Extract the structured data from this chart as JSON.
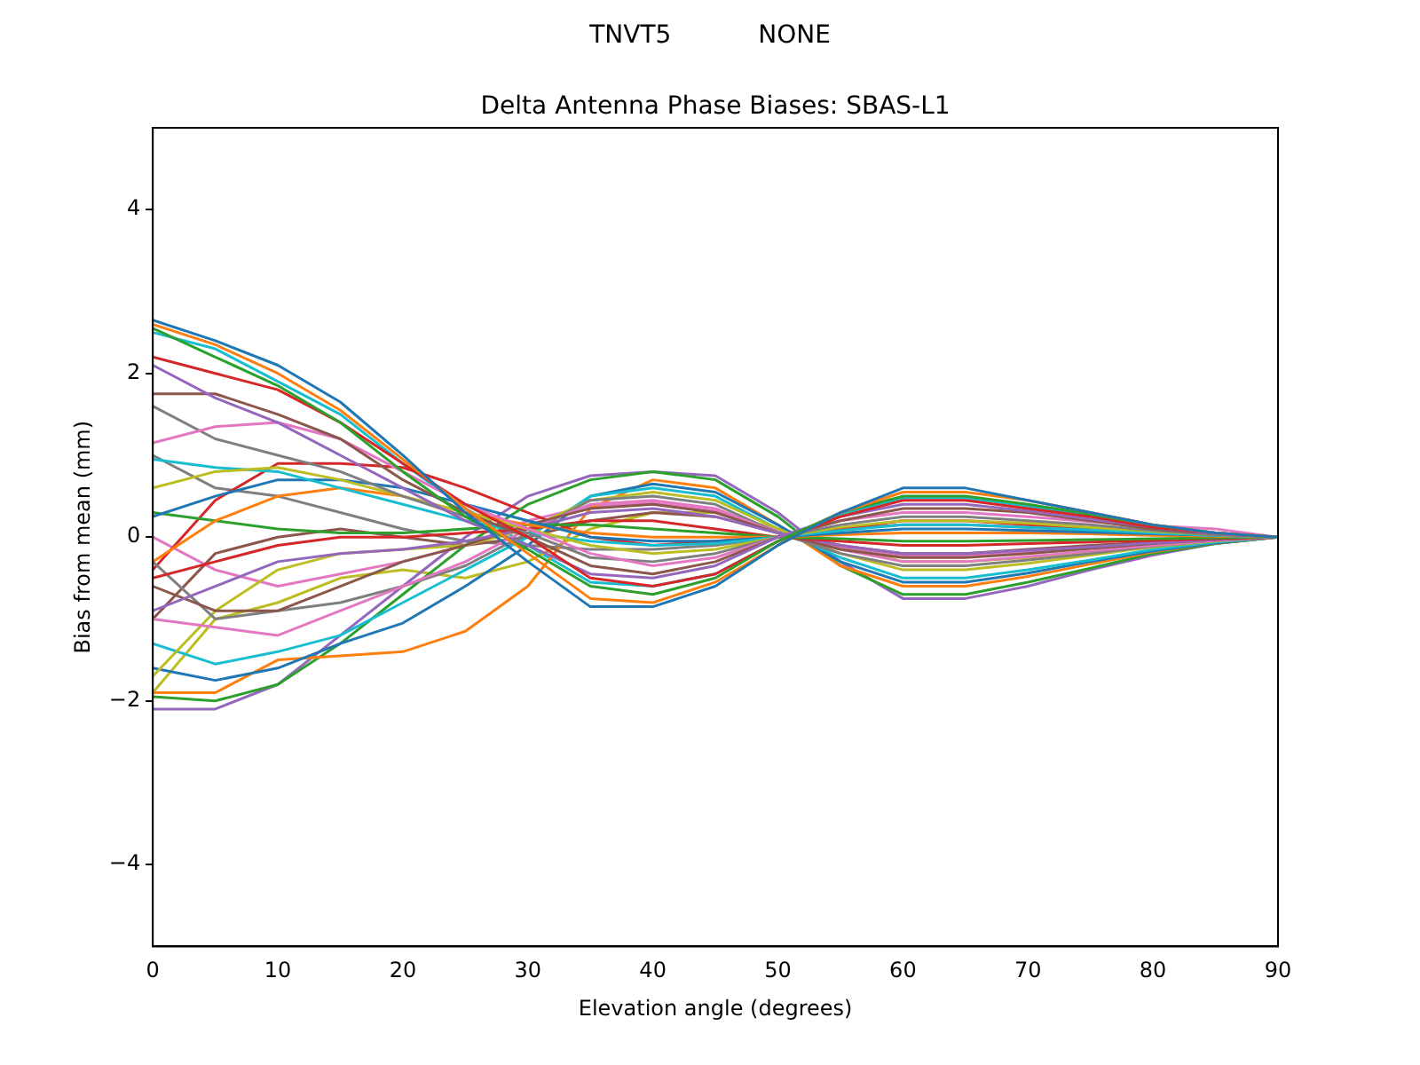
{
  "chart_data": {
    "type": "line",
    "title": "TNVT5           NONE",
    "subtitle": "Delta Antenna Phase Biases: SBAS-L1",
    "xlabel": "Elevation angle (degrees)",
    "ylabel": "Bias from mean (mm)",
    "x": [
      0,
      5,
      10,
      15,
      20,
      25,
      30,
      35,
      40,
      45,
      50,
      55,
      60,
      65,
      70,
      75,
      80,
      85,
      90
    ],
    "xlim": [
      0,
      90
    ],
    "xticks": [
      0,
      10,
      20,
      30,
      40,
      50,
      60,
      70,
      80,
      90
    ],
    "ylim": [
      -5,
      5
    ],
    "yticks": [
      {
        "value": -4,
        "label": "−4"
      },
      {
        "value": -2,
        "label": "−2"
      },
      0,
      2,
      4
    ],
    "grid": false,
    "legend": false,
    "series": [
      {
        "color": "#1f77b4",
        "values": [
          2.65,
          2.4,
          2.1,
          1.65,
          1.0,
          0.3,
          -0.3,
          -0.85,
          -0.85,
          -0.6,
          -0.1,
          0.3,
          0.6,
          0.6,
          0.45,
          0.3,
          0.15,
          0.05,
          0
        ]
      },
      {
        "color": "#ff7f0e",
        "values": [
          2.6,
          2.35,
          2.0,
          1.55,
          0.95,
          0.35,
          -0.2,
          -0.75,
          -0.8,
          -0.55,
          -0.1,
          0.3,
          0.55,
          0.55,
          0.45,
          0.3,
          0.15,
          0.05,
          0
        ]
      },
      {
        "color": "#2ca02c",
        "values": [
          2.55,
          2.2,
          1.85,
          1.4,
          0.8,
          0.25,
          -0.15,
          -0.6,
          -0.7,
          -0.5,
          -0.05,
          0.3,
          0.5,
          0.5,
          0.4,
          0.28,
          0.15,
          0.05,
          0
        ]
      },
      {
        "color": "#d62728",
        "values": [
          2.2,
          2.0,
          1.8,
          1.4,
          0.9,
          0.4,
          0.0,
          -0.5,
          -0.6,
          -0.45,
          -0.05,
          0.25,
          0.45,
          0.45,
          0.35,
          0.25,
          0.12,
          0.05,
          0
        ]
      },
      {
        "color": "#9467bd",
        "values": [
          2.1,
          1.7,
          1.4,
          1.0,
          0.6,
          0.2,
          -0.1,
          -0.45,
          -0.5,
          -0.35,
          0.0,
          0.25,
          0.4,
          0.4,
          0.32,
          0.22,
          0.12,
          0.04,
          0
        ]
      },
      {
        "color": "#8c564b",
        "values": [
          1.75,
          1.75,
          1.5,
          1.2,
          0.7,
          0.3,
          0.0,
          -0.35,
          -0.45,
          -0.3,
          0.0,
          0.2,
          0.35,
          0.35,
          0.3,
          0.2,
          0.1,
          0.04,
          0
        ]
      },
      {
        "color": "#e377c2",
        "values": [
          1.15,
          1.35,
          1.4,
          1.2,
          0.8,
          0.4,
          0.1,
          -0.2,
          -0.35,
          -0.25,
          0.0,
          0.2,
          0.3,
          0.3,
          0.25,
          0.19,
          0.14,
          0.1,
          0
        ]
      },
      {
        "color": "#7f7f7f",
        "values": [
          1.6,
          1.2,
          1.0,
          0.8,
          0.5,
          0.25,
          0.05,
          -0.25,
          -0.3,
          -0.2,
          0.0,
          0.15,
          0.25,
          0.25,
          0.2,
          0.15,
          0.08,
          0.03,
          0
        ]
      },
      {
        "color": "#bcbd22",
        "values": [
          0.6,
          0.8,
          0.85,
          0.7,
          0.5,
          0.3,
          0.1,
          -0.1,
          -0.2,
          -0.15,
          0.0,
          0.12,
          0.2,
          0.2,
          0.17,
          0.12,
          0.07,
          0.03,
          0
        ]
      },
      {
        "color": "#17becf",
        "values": [
          0.95,
          0.85,
          0.8,
          0.6,
          0.4,
          0.2,
          0.05,
          -0.05,
          -0.1,
          -0.08,
          0.0,
          0.08,
          0.15,
          0.15,
          0.12,
          0.09,
          0.05,
          0.02,
          0
        ]
      },
      {
        "color": "#1f77b4",
        "values": [
          0.25,
          0.5,
          0.7,
          0.7,
          0.6,
          0.4,
          0.2,
          0.0,
          -0.05,
          -0.05,
          0.0,
          0.05,
          0.1,
          0.1,
          0.08,
          0.06,
          0.04,
          0.02,
          0
        ]
      },
      {
        "color": "#ff7f0e",
        "values": [
          -0.3,
          0.2,
          0.5,
          0.6,
          0.5,
          0.3,
          0.15,
          0.05,
          0.0,
          0.0,
          0.0,
          0.03,
          0.05,
          0.05,
          0.05,
          0.04,
          0.02,
          0.01,
          0
        ]
      },
      {
        "color": "#2ca02c",
        "values": [
          0.3,
          0.2,
          0.1,
          0.05,
          0.05,
          0.1,
          0.15,
          0.15,
          0.1,
          0.05,
          0.0,
          -0.02,
          -0.05,
          -0.05,
          -0.04,
          -0.03,
          -0.02,
          -0.01,
          0
        ]
      },
      {
        "color": "#d62728",
        "values": [
          -0.5,
          -0.3,
          -0.1,
          0.0,
          0.0,
          0.05,
          0.1,
          0.2,
          0.2,
          0.1,
          0.0,
          -0.05,
          -0.1,
          -0.1,
          -0.08,
          -0.06,
          -0.04,
          -0.02,
          0
        ]
      },
      {
        "color": "#9467bd",
        "values": [
          -0.9,
          -0.6,
          -0.3,
          -0.2,
          -0.15,
          -0.05,
          0.1,
          0.3,
          0.35,
          0.25,
          0.05,
          -0.1,
          -0.2,
          -0.2,
          -0.16,
          -0.12,
          -0.07,
          -0.03,
          0
        ]
      },
      {
        "color": "#8c564b",
        "values": [
          -0.6,
          -0.9,
          -0.9,
          -0.6,
          -0.3,
          -0.1,
          0.15,
          0.35,
          0.4,
          0.3,
          0.05,
          -0.15,
          -0.25,
          -0.25,
          -0.2,
          -0.14,
          -0.08,
          -0.03,
          0
        ]
      },
      {
        "color": "#e377c2",
        "values": [
          -1.0,
          -1.1,
          -1.2,
          -0.9,
          -0.6,
          -0.3,
          0.1,
          0.4,
          0.45,
          0.35,
          0.05,
          -0.15,
          -0.3,
          -0.3,
          -0.24,
          -0.17,
          -0.1,
          -0.04,
          0
        ]
      },
      {
        "color": "#7f7f7f",
        "values": [
          -0.3,
          -1.0,
          -0.9,
          -0.8,
          -0.6,
          -0.35,
          0.05,
          0.45,
          0.5,
          0.4,
          0.05,
          -0.2,
          -0.35,
          -0.35,
          -0.28,
          -0.2,
          -0.11,
          -0.04,
          0
        ]
      },
      {
        "color": "#bcbd22",
        "values": [
          -1.7,
          -0.9,
          -0.4,
          -0.2,
          -0.15,
          -0.1,
          0.1,
          0.45,
          0.55,
          0.45,
          0.1,
          -0.2,
          -0.4,
          -0.4,
          -0.32,
          -0.22,
          -0.12,
          -0.05,
          0
        ]
      },
      {
        "color": "#17becf",
        "values": [
          -1.3,
          -1.55,
          -1.4,
          -1.2,
          -0.8,
          -0.4,
          0.0,
          0.5,
          0.6,
          0.5,
          0.1,
          -0.25,
          -0.5,
          -0.5,
          -0.4,
          -0.28,
          -0.15,
          -0.06,
          0
        ]
      },
      {
        "color": "#1f77b4",
        "values": [
          -1.6,
          -1.75,
          -1.6,
          -1.3,
          -1.05,
          -0.6,
          -0.1,
          0.5,
          0.65,
          0.55,
          0.15,
          -0.3,
          -0.55,
          -0.55,
          -0.44,
          -0.3,
          -0.17,
          -0.07,
          0
        ]
      },
      {
        "color": "#ff7f0e",
        "values": [
          -1.9,
          -1.9,
          -1.5,
          -1.45,
          -1.4,
          -1.15,
          -0.6,
          0.35,
          0.7,
          0.6,
          0.15,
          -0.35,
          -0.6,
          -0.6,
          -0.48,
          -0.33,
          -0.18,
          -0.07,
          0
        ]
      },
      {
        "color": "#2ca02c",
        "values": [
          -1.95,
          -2.0,
          -1.8,
          -1.3,
          -0.7,
          -0.1,
          0.4,
          0.7,
          0.8,
          0.7,
          0.25,
          -0.35,
          -0.7,
          -0.7,
          -0.55,
          -0.38,
          -0.2,
          -0.08,
          0
        ]
      },
      {
        "color": "#d62728",
        "values": [
          -0.4,
          0.45,
          0.9,
          0.9,
          0.85,
          0.6,
          0.3,
          0.0,
          -0.1,
          -0.05,
          0.0,
          0.1,
          0.2,
          0.2,
          0.15,
          0.1,
          0.06,
          0.02,
          0
        ]
      },
      {
        "color": "#9467bd",
        "values": [
          -2.1,
          -2.1,
          -1.8,
          -1.2,
          -0.6,
          0.0,
          0.5,
          0.75,
          0.8,
          0.75,
          0.3,
          -0.3,
          -0.75,
          -0.75,
          -0.6,
          -0.4,
          -0.22,
          -0.08,
          0
        ]
      },
      {
        "color": "#8c564b",
        "values": [
          -1.0,
          -0.2,
          0.0,
          0.1,
          0.0,
          -0.1,
          0.0,
          0.2,
          0.3,
          0.25,
          0.05,
          -0.1,
          -0.2,
          -0.2,
          -0.15,
          -0.1,
          -0.06,
          -0.02,
          0
        ]
      },
      {
        "color": "#e377c2",
        "values": [
          0.0,
          -0.4,
          -0.6,
          -0.45,
          -0.3,
          -0.1,
          0.2,
          0.38,
          0.42,
          0.32,
          0.08,
          -0.12,
          -0.22,
          -0.22,
          -0.18,
          -0.13,
          -0.08,
          -0.03,
          0
        ]
      },
      {
        "color": "#7f7f7f",
        "values": [
          1.0,
          0.6,
          0.5,
          0.3,
          0.1,
          -0.05,
          -0.1,
          -0.15,
          -0.15,
          -0.1,
          0.0,
          0.1,
          0.15,
          0.15,
          0.12,
          0.08,
          0.05,
          0.02,
          0
        ]
      },
      {
        "color": "#bcbd22",
        "values": [
          -1.9,
          -1.0,
          -0.8,
          -0.5,
          -0.4,
          -0.5,
          -0.3,
          0.1,
          0.3,
          0.3,
          0.1,
          -0.1,
          -0.3,
          -0.3,
          -0.25,
          -0.18,
          -0.1,
          -0.04,
          0
        ]
      },
      {
        "color": "#17becf",
        "values": [
          2.5,
          2.3,
          1.9,
          1.5,
          0.9,
          0.35,
          -0.1,
          -0.55,
          -0.6,
          -0.45,
          -0.05,
          0.28,
          0.48,
          0.48,
          0.38,
          0.26,
          0.13,
          0.05,
          0
        ]
      }
    ]
  }
}
